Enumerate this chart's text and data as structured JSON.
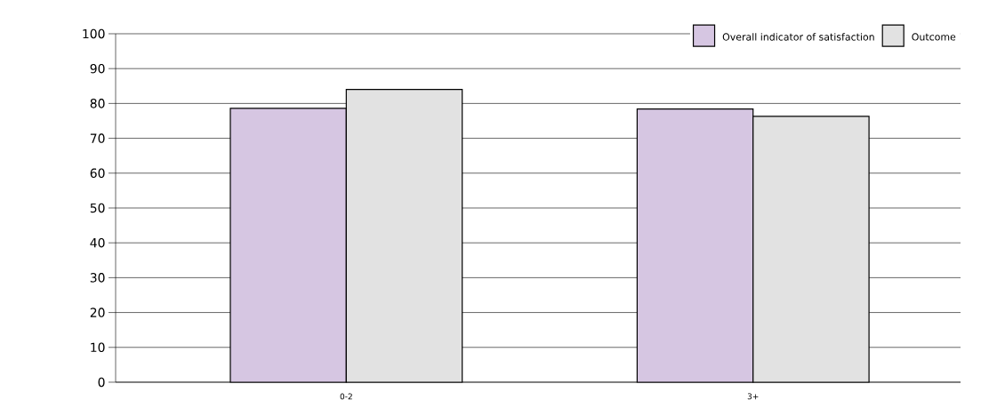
{
  "chart_data": {
    "type": "bar",
    "categories": [
      "0-2",
      "3+"
    ],
    "series": [
      {
        "name": "Overall indicator of satisfaction",
        "color": "#d6c6e2",
        "values": [
          78.6,
          78.4
        ]
      },
      {
        "name": "Outcome",
        "color": "#e2e2e2",
        "values": [
          84.0,
          76.3
        ]
      }
    ],
    "ylim": [
      0,
      100
    ],
    "yticks": [
      0,
      10,
      20,
      30,
      40,
      50,
      60,
      70,
      80,
      90,
      100
    ],
    "grid": "y",
    "legend": "top right"
  }
}
